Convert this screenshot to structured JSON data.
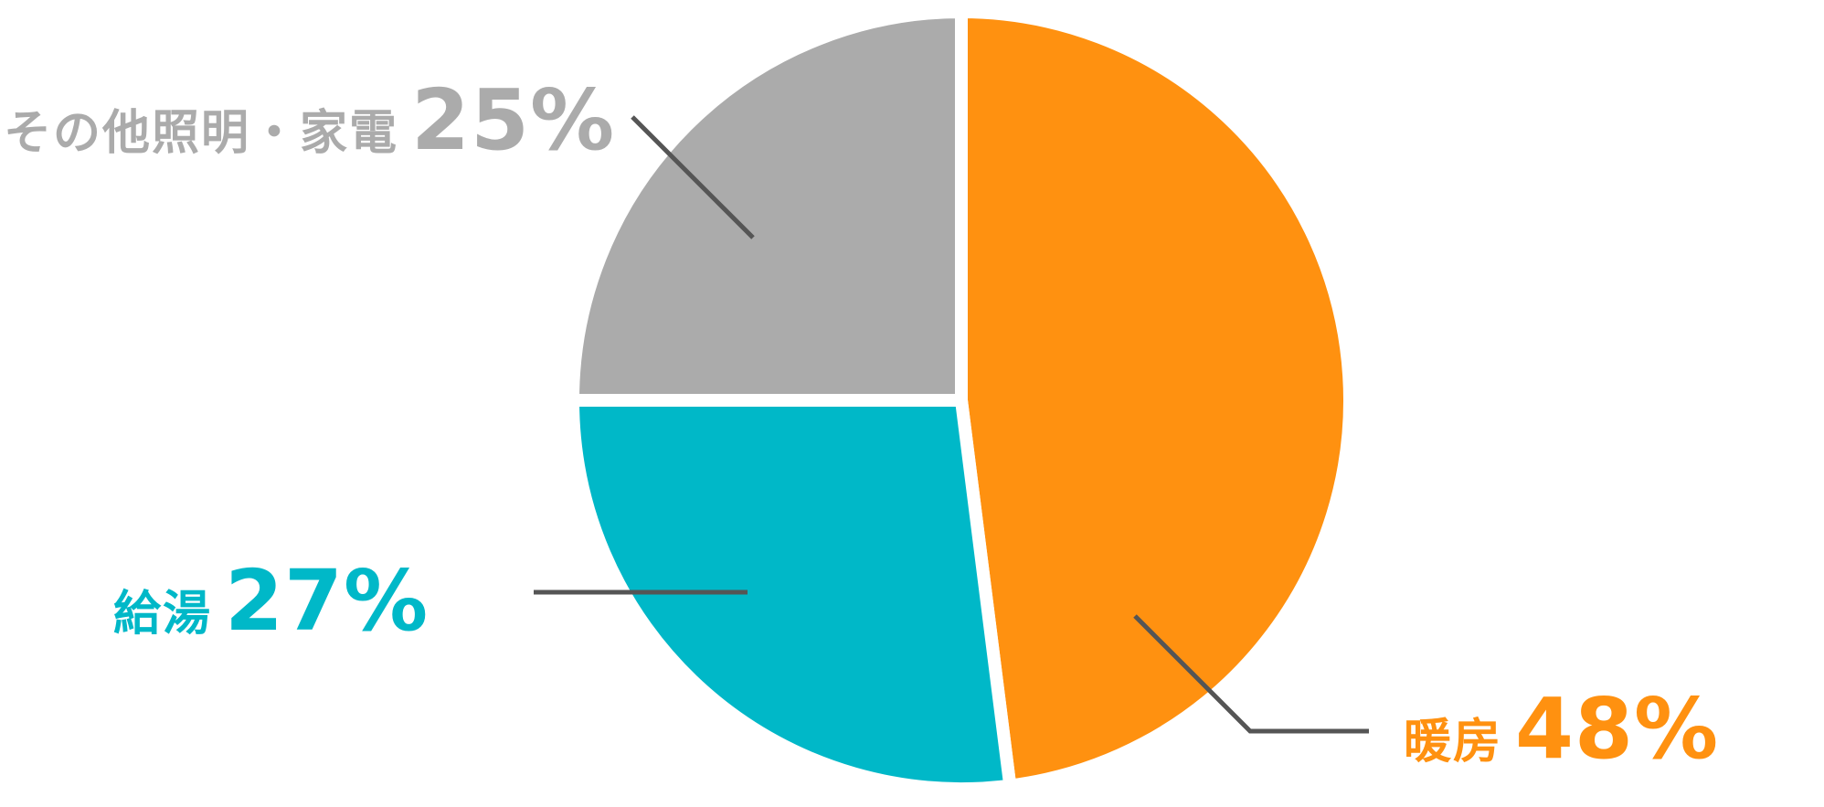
{
  "chart_data": {
    "type": "pie",
    "title": "",
    "slices": [
      {
        "label": "暖房",
        "value": 48,
        "display": "48%",
        "color": "#FF9110"
      },
      {
        "label": "給湯",
        "value": 27,
        "display": "27%",
        "color": "#00B8C8"
      },
      {
        "label": "その他照明・家電",
        "value": 25,
        "display": "25%",
        "color": "#ABABAB"
      }
    ],
    "leader_line_color": "#555555",
    "legend": "none"
  }
}
